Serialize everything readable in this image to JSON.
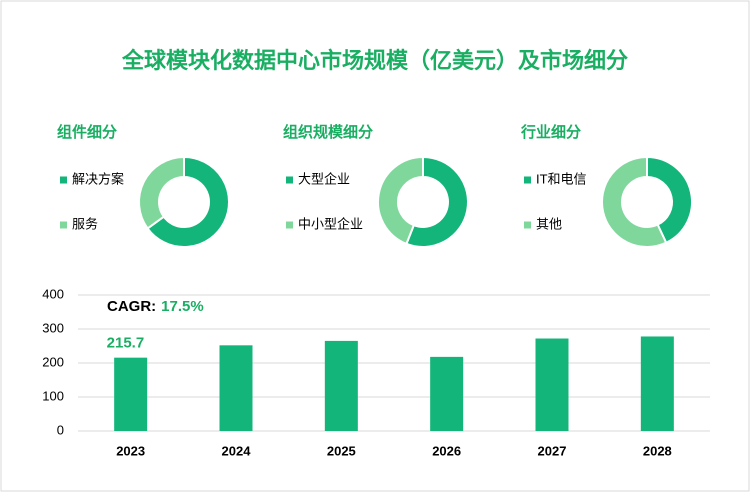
{
  "title": "全球模块化数据中心市场规模（亿美元）及市场细分",
  "chart_data": [
    {
      "type": "pie",
      "title": "组件细分",
      "categories": [
        "解决方案",
        "服务"
      ],
      "values": [
        65,
        35
      ],
      "colors": [
        "#13b57a",
        "#7fd79c"
      ]
    },
    {
      "type": "pie",
      "title": "组织规模细分",
      "categories": [
        "大型企业",
        "中小型企业"
      ],
      "values": [
        56,
        44
      ],
      "colors": [
        "#13b57a",
        "#7fd79c"
      ]
    },
    {
      "type": "pie",
      "title": "行业细分",
      "categories": [
        "IT和电信",
        "其他"
      ],
      "values": [
        43,
        57
      ],
      "colors": [
        "#13b57a",
        "#7fd79c"
      ]
    },
    {
      "type": "bar",
      "categories": [
        "2023",
        "2024",
        "2025",
        "2026",
        "2027",
        "2028"
      ],
      "values": [
        215.7,
        252,
        265,
        218,
        272,
        278
      ],
      "value_labels": [
        "215.7",
        null,
        null,
        null,
        null,
        null
      ],
      "color": "#13b57a",
      "ylim": [
        0,
        400
      ],
      "yticks": [
        0,
        100,
        200,
        300,
        400
      ],
      "grid": true,
      "cagr_label": "CAGR:",
      "cagr_value": "17.5%"
    }
  ]
}
